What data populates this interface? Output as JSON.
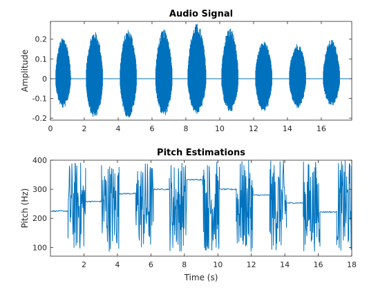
{
  "chart_data": [
    {
      "type": "line",
      "title": "Audio Signal",
      "xlabel": "",
      "ylabel": "Amplitude",
      "xlim": [
        0,
        17.8
      ],
      "ylim": [
        -0.21,
        0.29
      ],
      "xticks": [
        0,
        2,
        4,
        6,
        8,
        10,
        12,
        14,
        16
      ],
      "yticks": [
        -0.2,
        -0.1,
        0,
        0.1,
        0.2
      ],
      "ytick_labels": [
        "-0.2",
        "-0.1",
        "0",
        "0.1",
        "0.2"
      ],
      "grid": false,
      "color": "#0072BD",
      "segments": [
        {
          "start": 0.3,
          "end": 1.2,
          "pos_peak": 0.21,
          "neg_peak": -0.15
        },
        {
          "start": 2.1,
          "end": 3.1,
          "pos_peak": 0.24,
          "neg_peak": -0.2
        },
        {
          "start": 4.1,
          "end": 5.1,
          "pos_peak": 0.25,
          "neg_peak": -0.2
        },
        {
          "start": 6.2,
          "end": 7.2,
          "pos_peak": 0.25,
          "neg_peak": -0.19
        },
        {
          "start": 8.1,
          "end": 9.2,
          "pos_peak": 0.28,
          "neg_peak": -0.18
        },
        {
          "start": 10.1,
          "end": 11.1,
          "pos_peak": 0.26,
          "neg_peak": -0.17
        },
        {
          "start": 12.1,
          "end": 13.1,
          "pos_peak": 0.19,
          "neg_peak": -0.17
        },
        {
          "start": 14.1,
          "end": 15.1,
          "pos_peak": 0.18,
          "neg_peak": -0.15
        },
        {
          "start": 16.1,
          "end": 17.1,
          "pos_peak": 0.2,
          "neg_peak": -0.14
        }
      ]
    },
    {
      "type": "line",
      "title": "Pitch Estimations",
      "xlabel": "Time (s)",
      "ylabel": "Pitch (Hz)",
      "xlim": [
        0,
        18
      ],
      "ylim": [
        70,
        400
      ],
      "xticks": [
        2,
        4,
        6,
        8,
        10,
        12,
        14,
        16,
        18
      ],
      "yticks": [
        100,
        200,
        300,
        400
      ],
      "ytick_labels": [
        "100",
        "200",
        "300",
        "400"
      ],
      "grid": false,
      "color": "#0072BD",
      "stable_segments": [
        {
          "start": 0.0,
          "end": 1.05,
          "pitch": 225
        },
        {
          "start": 2.1,
          "end": 3.05,
          "pitch": 258
        },
        {
          "start": 4.1,
          "end": 5.1,
          "pitch": 285
        },
        {
          "start": 6.15,
          "end": 7.1,
          "pitch": 300
        },
        {
          "start": 8.15,
          "end": 9.1,
          "pitch": 333
        },
        {
          "start": 10.1,
          "end": 11.1,
          "pitch": 300
        },
        {
          "start": 12.1,
          "end": 13.1,
          "pitch": 280
        },
        {
          "start": 14.1,
          "end": 15.1,
          "pitch": 253
        },
        {
          "start": 16.1,
          "end": 17.1,
          "pitch": 222
        }
      ],
      "noisy_segments": [
        {
          "start": 1.05,
          "end": 2.1
        },
        {
          "start": 3.05,
          "end": 4.1
        },
        {
          "start": 5.1,
          "end": 6.15
        },
        {
          "start": 7.1,
          "end": 8.15
        },
        {
          "start": 9.1,
          "end": 10.1
        },
        {
          "start": 11.1,
          "end": 12.1
        },
        {
          "start": 13.1,
          "end": 14.1
        },
        {
          "start": 15.1,
          "end": 16.1
        },
        {
          "start": 17.1,
          "end": 18.0
        }
      ],
      "noise_range": [
        85,
        400
      ]
    }
  ]
}
